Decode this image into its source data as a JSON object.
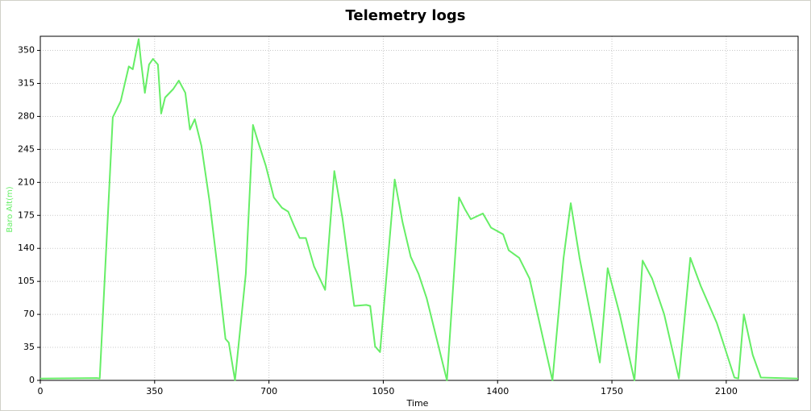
{
  "chart_data": {
    "type": "line",
    "title": "Telemetry logs",
    "x_label": "Time",
    "y_label": "Baro Alt(m)",
    "xlim": [
      0,
      2320
    ],
    "ylim": [
      0,
      365
    ],
    "xticks": [
      0,
      350,
      700,
      1050,
      1400,
      1750,
      2100
    ],
    "yticks": [
      0,
      35,
      70,
      105,
      140,
      175,
      210,
      245,
      280,
      315,
      350
    ],
    "grid": true,
    "x": [
      0,
      173,
      182,
      222,
      246,
      271,
      283,
      301,
      308,
      320,
      333,
      345,
      360,
      370,
      382,
      407,
      424,
      444,
      458,
      473,
      493,
      518,
      542,
      567,
      577,
      596,
      629,
      651,
      666,
      690,
      715,
      740,
      759,
      777,
      794,
      813,
      838,
      872,
      900,
      925,
      961,
      998,
      1010,
      1025,
      1040,
      1085,
      1109,
      1134,
      1158,
      1183,
      1245,
      1282,
      1301,
      1318,
      1355,
      1380,
      1417,
      1434,
      1466,
      1498,
      1568,
      1602,
      1624,
      1651,
      1713,
      1737,
      1774,
      1819,
      1844,
      1873,
      1910,
      1955,
      1990,
      2022,
      2071,
      2125,
      2137,
      2154,
      2181,
      2206,
      2320
    ],
    "series": [
      {
        "color": "#66ee66",
        "values": [
          2,
          2.5,
          2,
          279,
          296,
          333,
          330,
          362,
          339,
          305,
          335,
          341,
          335,
          283,
          300,
          309,
          318,
          305,
          266,
          277,
          249,
          190,
          121,
          44,
          40,
          0,
          113,
          271,
          254,
          228,
          194,
          183,
          179,
          164,
          151,
          151,
          121,
          96,
          222,
          172,
          79,
          80,
          79,
          36,
          30,
          213,
          168,
          131,
          113,
          87,
          0,
          194,
          181,
          171,
          177,
          162,
          155,
          138,
          130,
          108,
          0,
          130,
          188,
          130,
          19,
          119,
          70,
          0,
          127,
          108,
          70,
          2,
          130,
          100,
          61,
          3,
          2,
          70,
          27,
          3,
          2
        ]
      }
    ]
  }
}
